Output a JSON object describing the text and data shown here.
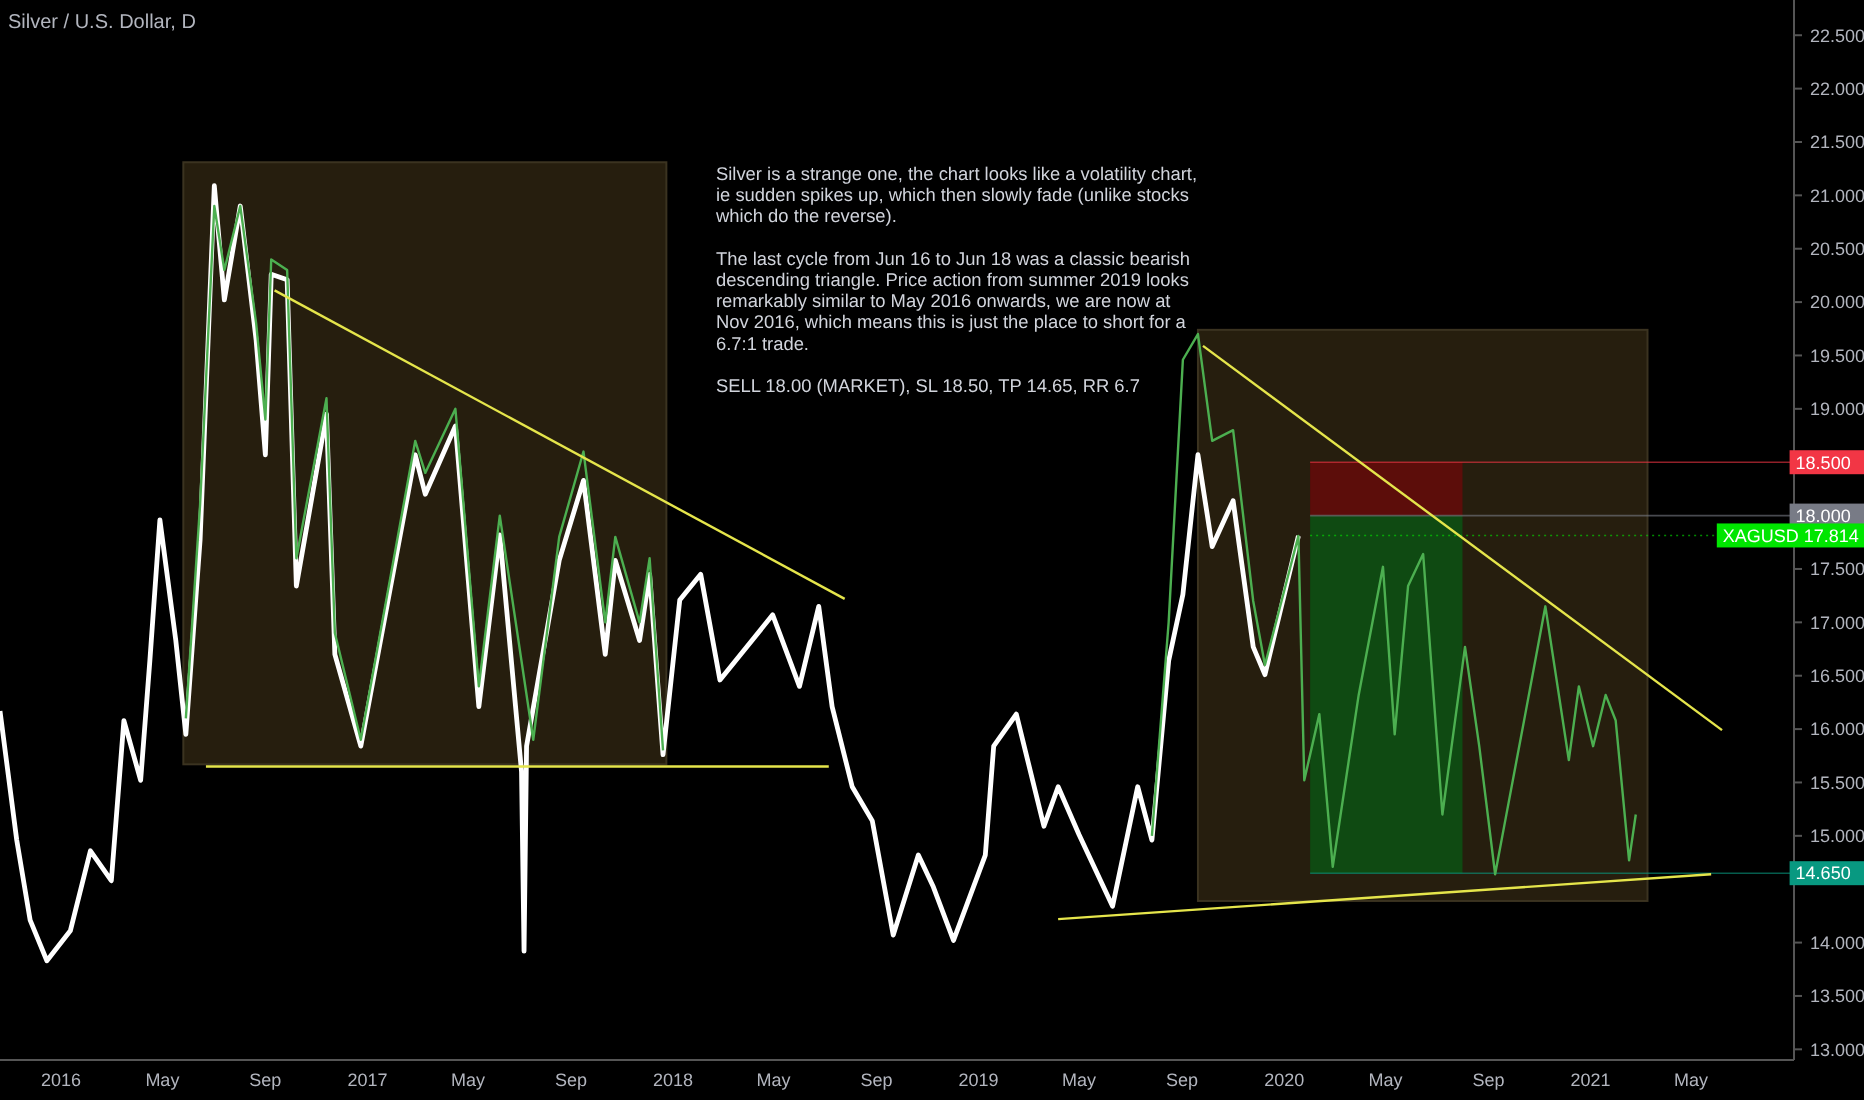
{
  "chart_data": {
    "type": "line",
    "title": "Silver / U.S. Dollar, D",
    "xlim": [
      "2015-10-20",
      "2021-09-01"
    ],
    "ylim": [
      12.9,
      22.83
    ],
    "xticks": [
      {
        "value": "2016-01-01",
        "label": "2016"
      },
      {
        "value": "2016-05-01",
        "label": "May"
      },
      {
        "value": "2016-09-01",
        "label": "Sep"
      },
      {
        "value": "2017-01-01",
        "label": "2017"
      },
      {
        "value": "2017-05-01",
        "label": "May"
      },
      {
        "value": "2017-09-01",
        "label": "Sep"
      },
      {
        "value": "2018-01-01",
        "label": "2018"
      },
      {
        "value": "2018-05-01",
        "label": "May"
      },
      {
        "value": "2018-09-01",
        "label": "Sep"
      },
      {
        "value": "2019-01-01",
        "label": "2019"
      },
      {
        "value": "2019-05-01",
        "label": "May"
      },
      {
        "value": "2019-09-01",
        "label": "Sep"
      },
      {
        "value": "2020-01-01",
        "label": "2020"
      },
      {
        "value": "2020-05-01",
        "label": "May"
      },
      {
        "value": "2020-09-01",
        "label": "Sep"
      },
      {
        "value": "2021-01-01",
        "label": "2021"
      },
      {
        "value": "2021-05-01",
        "label": "May"
      }
    ],
    "yticks": [
      {
        "value": 13,
        "label": "13.000"
      },
      {
        "value": 13.5,
        "label": "13.500"
      },
      {
        "value": 14,
        "label": "14.000"
      },
      {
        "value": 15,
        "label": "15.000"
      },
      {
        "value": 15.5,
        "label": "15.500"
      },
      {
        "value": 16,
        "label": "16.000"
      },
      {
        "value": 16.5,
        "label": "16.500"
      },
      {
        "value": 17,
        "label": "17.000"
      },
      {
        "value": 17.5,
        "label": "17.500"
      },
      {
        "value": 19,
        "label": "19.000"
      },
      {
        "value": 19.5,
        "label": "19.500"
      },
      {
        "value": 20,
        "label": "20.000"
      },
      {
        "value": 20.5,
        "label": "20.500"
      },
      {
        "value": 21,
        "label": "21.000"
      },
      {
        "value": 21.5,
        "label": "21.500"
      },
      {
        "value": 22,
        "label": "22.000"
      },
      {
        "value": 22.5,
        "label": "22.500"
      }
    ],
    "grid": false,
    "marker": "none",
    "line_style": "solid",
    "series": [
      {
        "color": "#ffffff",
        "x": [
          "2015-10-20",
          "2015-11-09",
          "2015-11-25",
          "2015-12-15",
          "2016-01-12",
          "2016-02-05",
          "2016-03-01",
          "2016-03-16",
          "2016-04-05",
          "2016-04-16",
          "2016-04-28",
          "2016-05-17",
          "2016-05-29",
          "2016-06-15",
          "2016-07-02",
          "2016-07-14",
          "2016-08-02",
          "2016-08-21",
          "2016-09-01",
          "2016-09-08",
          "2016-09-27",
          "2016-10-08",
          "2016-11-13",
          "2016-11-23",
          "2016-12-24",
          "2017-02-27",
          "2017-03-11",
          "2017-04-16",
          "2017-05-14",
          "2017-06-08",
          "2017-07-04",
          "2017-07-07",
          "2017-07-10",
          "2017-08-18",
          "2017-09-16",
          "2017-10-12",
          "2017-10-24",
          "2017-11-22",
          "2017-12-04",
          "2017-12-20",
          "2018-01-09",
          "2018-02-03",
          "2018-02-26",
          "2018-04-30",
          "2018-06-01",
          "2018-06-24",
          "2018-07-10",
          "2018-08-03",
          "2018-08-27",
          "2018-09-21",
          "2018-10-21",
          "2018-11-08",
          "2018-12-02",
          "2019-01-09",
          "2019-01-19",
          "2019-02-15",
          "2019-03-20",
          "2019-04-06",
          "2019-05-01",
          "2019-06-10",
          "2019-07-10",
          "2019-07-27",
          "2019-08-16",
          "2019-09-02",
          "2019-09-20",
          "2019-10-07",
          "2019-11-01",
          "2019-11-25",
          "2019-12-09",
          "2020-01-18"
        ],
        "values": [
          16.17,
          14.96,
          14.21,
          13.83,
          14.11,
          14.86,
          14.58,
          16.08,
          15.52,
          16.64,
          17.96,
          16.83,
          15.95,
          17.77,
          21.09,
          20.02,
          20.9,
          19.64,
          18.57,
          20.26,
          20.21,
          17.34,
          18.95,
          16.7,
          15.84,
          18.57,
          18.2,
          18.84,
          16.21,
          17.82,
          15.6,
          13.92,
          15.84,
          17.58,
          18.33,
          16.7,
          17.58,
          16.83,
          17.45,
          15.76,
          17.21,
          17.45,
          16.46,
          17.07,
          16.4,
          17.15,
          16.21,
          15.46,
          15.14,
          14.07,
          14.82,
          14.52,
          14.02,
          14.82,
          15.84,
          16.14,
          15.09,
          15.46,
          15.01,
          14.34,
          15.46,
          14.96,
          16.64,
          17.26,
          18.57,
          17.71,
          18.14,
          16.77,
          16.51,
          17.81
        ]
      },
      {
        "color": "#4caf50",
        "x": [
          "2016-05-29",
          "2016-06-15",
          "2016-07-02",
          "2016-07-14",
          "2016-08-02",
          "2016-08-21",
          "2016-09-01",
          "2016-09-08",
          "2016-09-27",
          "2016-10-08",
          "2016-11-13",
          "2016-11-23",
          "2016-12-24",
          "2017-02-27",
          "2017-03-11",
          "2017-04-16",
          "2017-05-14",
          "2017-06-08",
          "2017-07-18",
          "2017-08-18",
          "2017-09-16",
          "2017-10-12",
          "2017-10-24",
          "2017-11-22",
          "2017-12-04",
          "2017-12-20",
          "2018-06-01",
          "2019-07-27",
          "2019-08-16",
          "2019-09-02",
          "2019-09-20",
          "2019-10-07",
          "2019-11-01",
          "2019-11-25",
          "2019-12-09",
          "2020-01-18",
          "2020-01-25",
          "2020-02-12",
          "2020-02-28",
          "2020-03-30",
          "2020-04-28",
          "2020-05-12",
          "2020-05-28",
          "2020-06-15",
          "2020-07-08",
          "2020-08-04",
          "2020-08-21",
          "2020-09-09",
          "2020-09-21",
          "2020-10-15",
          "2020-11-08",
          "2020-12-06",
          "2020-12-18",
          "2021-01-04",
          "2021-01-19",
          "2021-01-31",
          "2021-02-16",
          "2021-02-24"
        ],
        "values": [
          16.1,
          18.1,
          20.9,
          20.3,
          20.9,
          19.8,
          18.9,
          20.4,
          20.3,
          17.6,
          19.1,
          16.9,
          15.9,
          18.7,
          18.4,
          19.0,
          16.4,
          18.0,
          15.9,
          17.8,
          18.6,
          17.0,
          17.8,
          17.0,
          17.6,
          15.8,
          null,
          15.0,
          17.0,
          19.46,
          19.7,
          18.7,
          18.8,
          17.2,
          16.6,
          17.81,
          15.52,
          16.14,
          14.71,
          16.32,
          17.52,
          15.95,
          17.34,
          17.64,
          15.2,
          16.77,
          15.84,
          14.64,
          15.14,
          16.14,
          17.15,
          15.71,
          16.4,
          15.84,
          16.32,
          16.08,
          14.77,
          15.2
        ]
      },
      {
        "color": "#e5e54b",
        "x": [
          "2016-09-12",
          "2018-07-25"
        ],
        "values": [
          20.11,
          17.22
        ]
      },
      {
        "color": "#e5e54b",
        "x": [
          "2016-06-22",
          "2018-07-06"
        ],
        "values": [
          15.65,
          15.65
        ]
      },
      {
        "color": "#e5e54b",
        "x": [
          "2019-09-26",
          "2021-06-07"
        ],
        "values": [
          19.59,
          15.99
        ]
      },
      {
        "color": "#e5e54b",
        "x": [
          "2019-04-06",
          "2021-05-25"
        ],
        "values": [
          14.22,
          14.64
        ]
      }
    ],
    "ref_lines": [
      {
        "axis": "y",
        "value": 18.5,
        "label": "18.500",
        "color": "#f23645"
      },
      {
        "axis": "y",
        "value": 18.0,
        "label": "18.000",
        "color": "#787b86"
      },
      {
        "axis": "y",
        "value": 17.814,
        "label": "XAGUSD 17.814",
        "color": "#00e600"
      },
      {
        "axis": "y",
        "value": 14.65,
        "label": "14.650",
        "color": "#089981"
      }
    ],
    "annotations": [
      "Silver is a strange one, the chart looks like a volatility chart,\nie sudden spikes up, which then slowly fade (unlike stocks\nwhich do the reverse).",
      "The last cycle from Jun 16 to Jun 18 was a classic bearish\ndescending triangle. Price action from summer 2019 looks\nremarkably similar to May 2016 onwards, we are now at\nNov 2016, which means this is just the place to short for a\n6.7:1 trade.",
      "SELL 18.00 (MARKET), SL 18.50, TP 14.65, RR 6.7"
    ]
  }
}
